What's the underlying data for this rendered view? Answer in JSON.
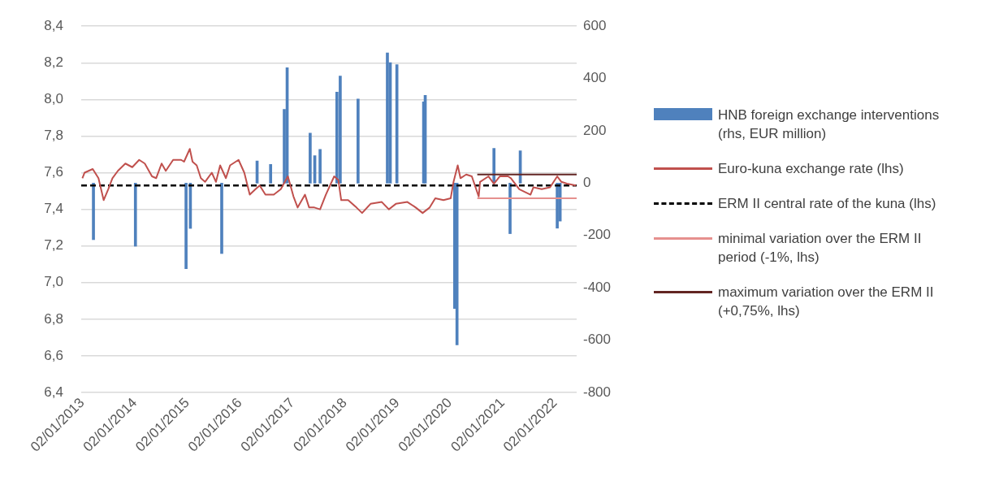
{
  "chart_data": {
    "type": "line",
    "xlim": [
      "2012-12-25",
      "2022-06-01"
    ],
    "xticks": [
      {
        "value": "2013-01-02",
        "label": "02/01/2013"
      },
      {
        "value": "2014-01-02",
        "label": "02/01/2014"
      },
      {
        "value": "2015-01-02",
        "label": "02/01/2015"
      },
      {
        "value": "2016-01-02",
        "label": "02/01/2016"
      },
      {
        "value": "2017-01-02",
        "label": "02/01/2017"
      },
      {
        "value": "2018-01-02",
        "label": "02/01/2018"
      },
      {
        "value": "2019-01-02",
        "label": "02/01/2019"
      },
      {
        "value": "2020-01-02",
        "label": "02/01/2020"
      },
      {
        "value": "2021-01-02",
        "label": "02/01/2021"
      },
      {
        "value": "2022-01-02",
        "label": "02/01/2022"
      }
    ],
    "ylim": [
      6.4,
      8.4
    ],
    "yticks": [
      {
        "value": 6.4,
        "label": "6,4"
      },
      {
        "value": 6.6,
        "label": "6,6"
      },
      {
        "value": 6.8,
        "label": "6,8"
      },
      {
        "value": 7.0,
        "label": "7,0"
      },
      {
        "value": 7.2,
        "label": "7,2"
      },
      {
        "value": 7.4,
        "label": "7,4"
      },
      {
        "value": 7.6,
        "label": "7,6"
      },
      {
        "value": 7.8,
        "label": "7,8"
      },
      {
        "value": 8.0,
        "label": "8,0"
      },
      {
        "value": 8.2,
        "label": "8,2"
      },
      {
        "value": 8.4,
        "label": "8,4"
      }
    ],
    "y2lim": [
      -800,
      600
    ],
    "y2ticks": [
      -800,
      -600,
      -400,
      -200,
      0,
      200,
      400,
      600
    ],
    "grid": "y",
    "legend": "right",
    "series": [
      {
        "name": "HNB foreign exchange interventions (rhs, EUR million)",
        "type": "bar",
        "axis": "y2",
        "color": "#4f81bd",
        "x": [
          "2013-03-20",
          "2014-01-06",
          "2014-12-24",
          "2015-01-23",
          "2015-08-29",
          "2016-05-01",
          "2016-08-03",
          "2016-11-06",
          "2016-11-26",
          "2017-05-05",
          "2017-06-06",
          "2017-07-13",
          "2017-11-07",
          "2017-11-30",
          "2018-04-03",
          "2018-10-24",
          "2018-11-13",
          "2018-12-29",
          "2019-07-03",
          "2019-07-14",
          "2020-02-04",
          "2020-02-20",
          "2020-11-03",
          "2021-02-23",
          "2021-05-05",
          "2022-01-17",
          "2022-02-06"
        ],
        "values": [
          -216,
          -241,
          -327,
          -173,
          -269,
          85,
          72,
          282,
          441,
          191,
          105,
          129,
          348,
          409,
          322,
          498,
          461,
          453,
          311,
          336,
          -479,
          -618,
          133,
          -193,
          124,
          -172,
          -145
        ]
      },
      {
        "name": "Euro-kuna exchange rate (lhs)",
        "color": "#c0504d",
        "x": [
          "2013-01-02",
          "2013-01-17",
          "2013-03-15",
          "2013-04-24",
          "2013-05-30",
          "2013-07-01",
          "2013-07-30",
          "2013-09-06",
          "2013-10-28",
          "2013-12-15",
          "2014-02-01",
          "2014-03-12",
          "2014-05-01",
          "2014-05-30",
          "2014-07-07",
          "2014-08-05",
          "2014-09-25",
          "2014-11-20",
          "2014-12-10",
          "2015-01-19",
          "2015-02-07",
          "2015-03-08",
          "2015-04-06",
          "2015-05-05",
          "2015-06-21",
          "2015-07-20",
          "2015-08-18",
          "2015-09-27",
          "2015-10-26",
          "2015-12-24",
          "2016-02-02",
          "2016-03-11",
          "2016-04-20",
          "2016-05-19",
          "2016-06-28",
          "2016-08-25",
          "2016-10-13",
          "2016-12-01",
          "2017-01-09",
          "2017-02-07",
          "2017-03-30",
          "2017-04-28",
          "2017-06-03",
          "2017-07-13",
          "2017-08-22",
          "2017-10-19",
          "2017-11-17",
          "2017-12-07",
          "2018-01-24",
          "2018-03-23",
          "2018-05-01",
          "2018-06-29",
          "2018-09-15",
          "2018-11-03",
          "2018-12-22",
          "2019-03-12",
          "2019-05-09",
          "2019-06-26",
          "2019-08-14",
          "2019-09-22",
          "2019-11-18",
          "2020-01-07",
          "2020-01-27",
          "2020-02-25",
          "2020-03-15",
          "2020-04-24",
          "2020-06-02",
          "2020-07-20",
          "2020-07-29",
          "2020-09-26",
          "2020-11-03",
          "2020-12-13",
          "2021-02-09",
          "2021-03-01",
          "2021-04-28",
          "2021-07-15",
          "2021-08-04",
          "2021-10-01",
          "2021-11-28",
          "2022-01-17",
          "2022-02-15",
          "2022-03-25",
          "2022-05-27"
        ],
        "values": [
          7.57,
          7.6,
          7.62,
          7.57,
          7.45,
          7.51,
          7.57,
          7.61,
          7.65,
          7.63,
          7.67,
          7.65,
          7.58,
          7.57,
          7.65,
          7.61,
          7.67,
          7.67,
          7.66,
          7.73,
          7.66,
          7.64,
          7.57,
          7.55,
          7.6,
          7.55,
          7.64,
          7.57,
          7.64,
          7.67,
          7.6,
          7.48,
          7.51,
          7.53,
          7.48,
          7.48,
          7.51,
          7.58,
          7.47,
          7.41,
          7.48,
          7.41,
          7.41,
          7.4,
          7.48,
          7.58,
          7.56,
          7.45,
          7.45,
          7.41,
          7.38,
          7.43,
          7.44,
          7.4,
          7.43,
          7.44,
          7.41,
          7.38,
          7.41,
          7.46,
          7.45,
          7.46,
          7.55,
          7.64,
          7.57,
          7.59,
          7.58,
          7.47,
          7.55,
          7.58,
          7.54,
          7.58,
          7.58,
          7.57,
          7.51,
          7.48,
          7.52,
          7.51,
          7.52,
          7.58,
          7.55,
          7.54,
          7.53
        ]
      },
      {
        "name": "ERM II central rate of the kuna (lhs)",
        "line_style": "dashed",
        "color": "#000000",
        "x": [
          "2012-12-25",
          "2022-06-01"
        ],
        "values": [
          7.53,
          7.53
        ]
      },
      {
        "name": "minimal variation over the ERM II period (-1%, lhs)",
        "color": "#e6908e",
        "x": [
          "2020-07-10",
          "2022-06-01"
        ],
        "values": [
          7.46,
          7.46
        ]
      },
      {
        "name": "maximum variation over the ERM II (+0,75%, lhs)",
        "color": "#632523",
        "x": [
          "2020-07-10",
          "2022-06-01"
        ],
        "values": [
          7.59,
          7.59
        ]
      }
    ]
  }
}
